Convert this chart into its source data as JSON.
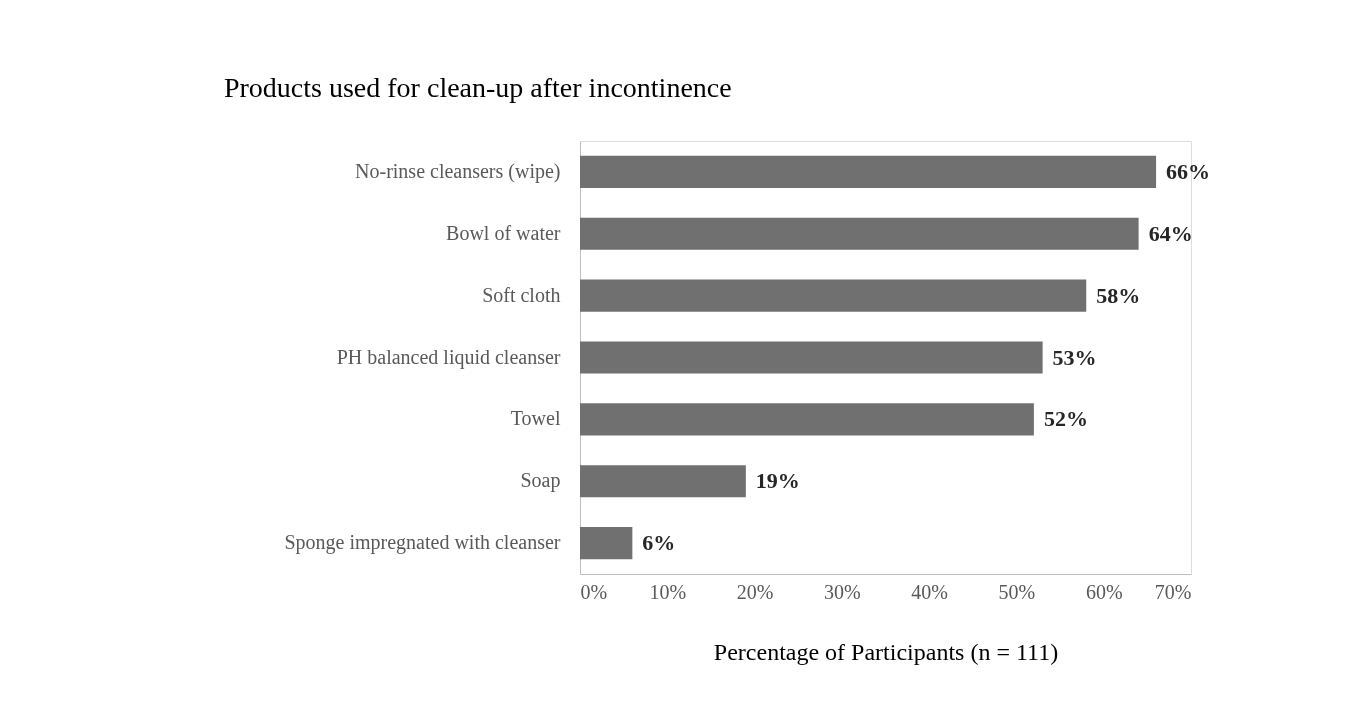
{
  "chart_data": {
    "type": "bar",
    "orientation": "horizontal",
    "title": "Products used for clean-up after incontinence",
    "xlabel": "Percentage of Participants (n = 111)",
    "categories": [
      "No-rinse cleansers (wipe)",
      "Bowl of water",
      "Soft cloth",
      "PH balanced liquid cleanser",
      "Towel",
      "Soap",
      "Sponge impregnated with cleanser"
    ],
    "values": [
      66,
      64,
      58,
      53,
      52,
      19,
      6
    ],
    "value_labels": [
      "66%",
      "64%",
      "58%",
      "53%",
      "52%",
      "19%",
      "6%"
    ],
    "color": "#707070",
    "xlim": [
      0,
      70
    ],
    "xticks": [
      {
        "value": 0,
        "label": "0%"
      },
      {
        "value": 10,
        "label": "10%"
      },
      {
        "value": 20,
        "label": "20%"
      },
      {
        "value": 30,
        "label": "30%"
      },
      {
        "value": 40,
        "label": "40%"
      },
      {
        "value": 50,
        "label": "50%"
      },
      {
        "value": 60,
        "label": "60%"
      },
      {
        "value": 70,
        "label": "70%"
      }
    ],
    "grid": false
  }
}
